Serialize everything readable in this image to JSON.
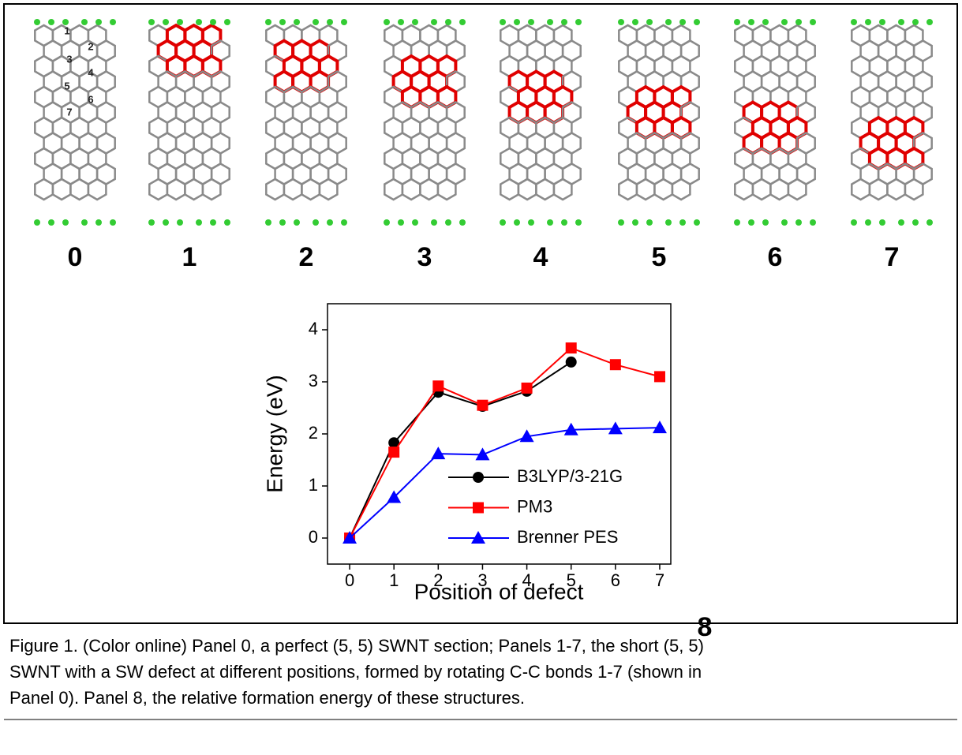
{
  "panels": {
    "labels": [
      "0",
      "1",
      "2",
      "3",
      "4",
      "5",
      "6",
      "7"
    ],
    "bond_labels": [
      "1",
      "2",
      "3",
      "4",
      "5",
      "6",
      "7"
    ]
  },
  "chart_data": {
    "type": "line",
    "panel_label": "8",
    "x_label": "Position of defect",
    "y_label": "Energy (eV)",
    "x": [
      0,
      1,
      2,
      3,
      4,
      5,
      6,
      7
    ],
    "series": [
      {
        "name": "B3LYP/3-21G",
        "color": "#000000",
        "marker": "circle",
        "values": [
          0,
          1.83,
          2.8,
          2.53,
          2.82,
          3.38,
          null,
          null
        ]
      },
      {
        "name": "PM3",
        "color": "#ff0000",
        "marker": "square",
        "values": [
          0,
          1.65,
          2.92,
          2.55,
          2.88,
          3.65,
          3.33,
          3.1
        ]
      },
      {
        "name": "Brenner PES",
        "color": "#0000ff",
        "marker": "triangle",
        "values": [
          0,
          0.78,
          1.62,
          1.6,
          1.95,
          2.08,
          2.1,
          2.12
        ]
      }
    ],
    "xlim": [
      -0.5,
      7.25
    ],
    "ylim": [
      -0.5,
      4.5
    ],
    "xticks": [
      0,
      1,
      2,
      3,
      4,
      5,
      6,
      7
    ],
    "yticks": [
      0,
      1,
      2,
      3,
      4
    ]
  },
  "caption": [
    "Figure 1. (Color online) Panel 0, a perfect (5, 5) SWNT section; Panels 1-7, the short (5, 5)",
    "SWNT with a SW defect at different positions, formed by rotating C-C bonds 1-7 (shown in",
    "Panel 0). Panel 8, the relative formation energy of these structures."
  ]
}
